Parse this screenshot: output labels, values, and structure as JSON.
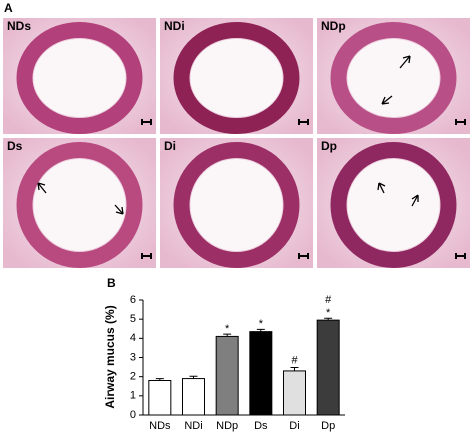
{
  "panel_a": {
    "label": "A",
    "images": [
      "NDs",
      "NDi",
      "NDp",
      "Ds",
      "Di",
      "Dp"
    ]
  },
  "chart_data": {
    "type": "bar",
    "panel_label": "B",
    "y_label": "Airway mucus (%)",
    "categories": [
      "NDs",
      "NDi",
      "NDp",
      "Ds",
      "Di",
      "Dp"
    ],
    "values": [
      1.8,
      1.9,
      4.1,
      4.35,
      2.3,
      4.95
    ],
    "errors": [
      0.1,
      0.12,
      0.12,
      0.12,
      0.18,
      0.1
    ],
    "colors": [
      "#ffffff",
      "#ffffff",
      "#7f7f7f",
      "#000000",
      "#e0e0e0",
      "#3c3c3c"
    ],
    "stars": [
      null,
      null,
      "*",
      "*",
      null,
      "*"
    ],
    "hashes": [
      null,
      null,
      null,
      null,
      "#",
      "#"
    ],
    "ylim": [
      0,
      6
    ],
    "yticks": [
      0,
      1,
      2,
      3,
      4,
      5,
      6
    ]
  }
}
